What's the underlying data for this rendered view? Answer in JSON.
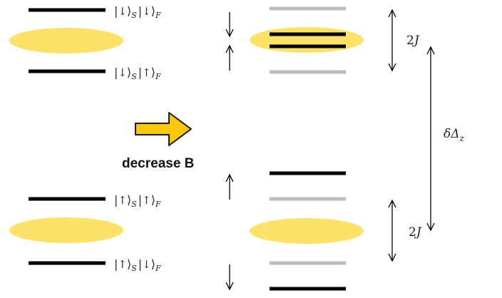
{
  "colors": {
    "level_dark": "#000000",
    "level_light": "#bdbdbd",
    "ellipse_fill": "#fde26a",
    "big_arrow_fill": "#f9c80e",
    "big_arrow_stroke": "#1a1a1a",
    "thin_arrow": "#000000"
  },
  "states": {
    "down_down": {
      "bra": "|",
      "spin1": "↓",
      "ket": "⟩",
      "sub1": "S",
      "spin2": "↓",
      "sub2": "F"
    },
    "down_up": {
      "bra": "|",
      "spin1": "↓",
      "ket": "⟩",
      "sub1": "S",
      "spin2": "↑",
      "sub2": "F"
    },
    "up_up": {
      "bra": "|",
      "spin1": "↑",
      "ket": "⟩",
      "sub1": "S",
      "spin2": "↑",
      "sub2": "F"
    },
    "up_down": {
      "bra": "|",
      "spin1": "↑",
      "ket": "⟩",
      "sub1": "S",
      "spin2": "↓",
      "sub2": "F"
    }
  },
  "action_label": "decrease B",
  "splitting_label": {
    "number": "2",
    "symbol": "J"
  },
  "offset_label": {
    "delta": "δΔ",
    "sub": "z"
  },
  "arrow_glyphs": {
    "down": "↓",
    "up": "↑"
  }
}
